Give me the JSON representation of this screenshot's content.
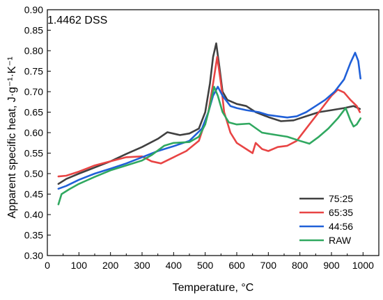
{
  "chart_data": {
    "type": "line",
    "annotation": "1.4462 DSS",
    "xlabel": "Temperature, °C",
    "ylabel": "Apparent specific heat, J·g⁻¹·K⁻¹",
    "xlim": [
      0,
      1050
    ],
    "ylim": [
      0.3,
      0.9
    ],
    "x_ticks": [
      0,
      100,
      200,
      300,
      400,
      500,
      600,
      700,
      800,
      900,
      1000
    ],
    "y_ticks": [
      "0.30",
      "0.35",
      "0.40",
      "0.45",
      "0.50",
      "0.55",
      "0.60",
      "0.65",
      "0.70",
      "0.75",
      "0.80",
      "0.85",
      "0.90"
    ],
    "grid": false,
    "legend_position": "bottom-right",
    "series": [
      {
        "name": "75:25",
        "color": "#404040",
        "points": [
          [
            35,
            0.475
          ],
          [
            60,
            0.487
          ],
          [
            100,
            0.5
          ],
          [
            150,
            0.515
          ],
          [
            200,
            0.53
          ],
          [
            250,
            0.548
          ],
          [
            300,
            0.565
          ],
          [
            350,
            0.585
          ],
          [
            380,
            0.601
          ],
          [
            420,
            0.594
          ],
          [
            450,
            0.598
          ],
          [
            480,
            0.61
          ],
          [
            500,
            0.65
          ],
          [
            515,
            0.72
          ],
          [
            525,
            0.785
          ],
          [
            535,
            0.818
          ],
          [
            545,
            0.76
          ],
          [
            555,
            0.7
          ],
          [
            570,
            0.68
          ],
          [
            600,
            0.67
          ],
          [
            630,
            0.665
          ],
          [
            660,
            0.65
          ],
          [
            700,
            0.638
          ],
          [
            740,
            0.628
          ],
          [
            780,
            0.63
          ],
          [
            820,
            0.64
          ],
          [
            860,
            0.65
          ],
          [
            900,
            0.655
          ],
          [
            940,
            0.66
          ],
          [
            970,
            0.665
          ],
          [
            990,
            0.658
          ]
        ]
      },
      {
        "name": "65:35",
        "color": "#e84444",
        "points": [
          [
            35,
            0.493
          ],
          [
            60,
            0.495
          ],
          [
            100,
            0.505
          ],
          [
            150,
            0.52
          ],
          [
            200,
            0.53
          ],
          [
            250,
            0.54
          ],
          [
            300,
            0.542
          ],
          [
            330,
            0.53
          ],
          [
            360,
            0.525
          ],
          [
            400,
            0.54
          ],
          [
            440,
            0.555
          ],
          [
            480,
            0.58
          ],
          [
            510,
            0.65
          ],
          [
            525,
            0.72
          ],
          [
            538,
            0.785
          ],
          [
            550,
            0.72
          ],
          [
            560,
            0.65
          ],
          [
            580,
            0.6
          ],
          [
            600,
            0.575
          ],
          [
            630,
            0.56
          ],
          [
            650,
            0.55
          ],
          [
            660,
            0.575
          ],
          [
            680,
            0.56
          ],
          [
            700,
            0.555
          ],
          [
            730,
            0.565
          ],
          [
            760,
            0.568
          ],
          [
            790,
            0.58
          ],
          [
            820,
            0.61
          ],
          [
            860,
            0.65
          ],
          [
            900,
            0.69
          ],
          [
            920,
            0.705
          ],
          [
            940,
            0.698
          ],
          [
            960,
            0.68
          ],
          [
            980,
            0.665
          ],
          [
            990,
            0.65
          ]
        ]
      },
      {
        "name": "44:56",
        "color": "#2060d8",
        "points": [
          [
            35,
            0.463
          ],
          [
            60,
            0.47
          ],
          [
            100,
            0.485
          ],
          [
            150,
            0.5
          ],
          [
            200,
            0.512
          ],
          [
            250,
            0.525
          ],
          [
            300,
            0.54
          ],
          [
            350,
            0.555
          ],
          [
            400,
            0.567
          ],
          [
            450,
            0.58
          ],
          [
            490,
            0.61
          ],
          [
            510,
            0.65
          ],
          [
            525,
            0.69
          ],
          [
            540,
            0.712
          ],
          [
            555,
            0.69
          ],
          [
            580,
            0.665
          ],
          [
            600,
            0.66
          ],
          [
            630,
            0.655
          ],
          [
            670,
            0.65
          ],
          [
            700,
            0.643
          ],
          [
            730,
            0.64
          ],
          [
            760,
            0.637
          ],
          [
            790,
            0.64
          ],
          [
            820,
            0.65
          ],
          [
            850,
            0.665
          ],
          [
            880,
            0.68
          ],
          [
            910,
            0.7
          ],
          [
            940,
            0.73
          ],
          [
            960,
            0.77
          ],
          [
            975,
            0.795
          ],
          [
            985,
            0.775
          ],
          [
            992,
            0.732
          ]
        ]
      },
      {
        "name": "RAW",
        "color": "#30a860",
        "points": [
          [
            35,
            0.425
          ],
          [
            45,
            0.45
          ],
          [
            70,
            0.462
          ],
          [
            100,
            0.475
          ],
          [
            150,
            0.492
          ],
          [
            200,
            0.508
          ],
          [
            250,
            0.52
          ],
          [
            300,
            0.532
          ],
          [
            330,
            0.545
          ],
          [
            370,
            0.568
          ],
          [
            400,
            0.575
          ],
          [
            450,
            0.577
          ],
          [
            480,
            0.59
          ],
          [
            500,
            0.62
          ],
          [
            515,
            0.665
          ],
          [
            528,
            0.712
          ],
          [
            540,
            0.69
          ],
          [
            555,
            0.65
          ],
          [
            575,
            0.625
          ],
          [
            600,
            0.62
          ],
          [
            640,
            0.622
          ],
          [
            680,
            0.6
          ],
          [
            720,
            0.595
          ],
          [
            760,
            0.59
          ],
          [
            800,
            0.58
          ],
          [
            830,
            0.573
          ],
          [
            860,
            0.59
          ],
          [
            890,
            0.61
          ],
          [
            920,
            0.635
          ],
          [
            945,
            0.66
          ],
          [
            960,
            0.63
          ],
          [
            970,
            0.615
          ],
          [
            980,
            0.62
          ],
          [
            992,
            0.635
          ]
        ]
      }
    ]
  }
}
